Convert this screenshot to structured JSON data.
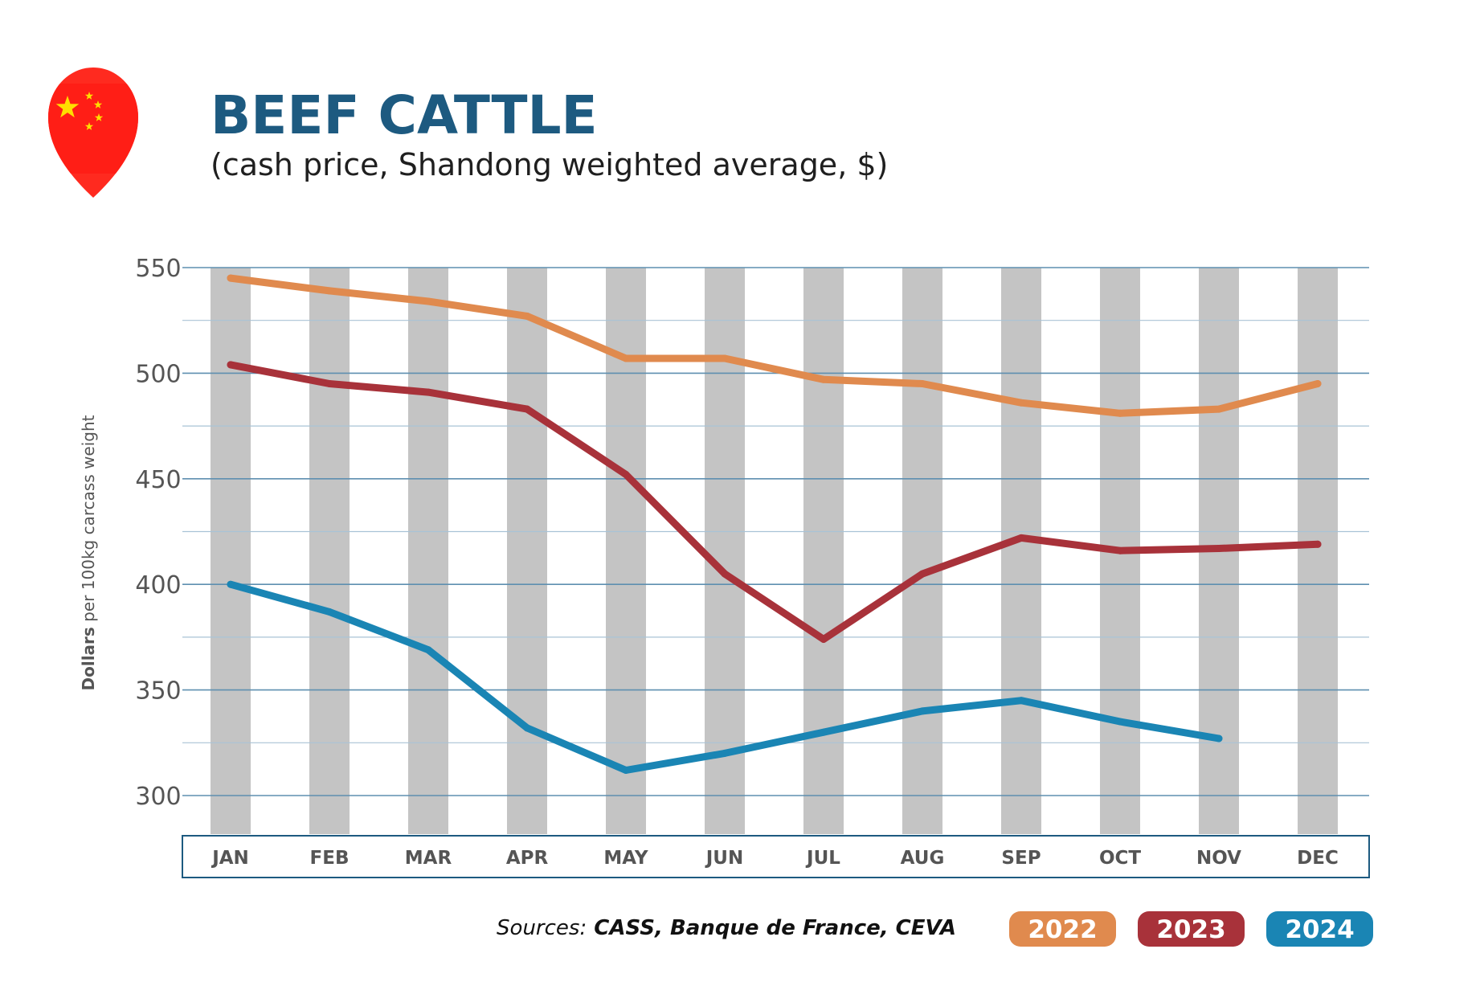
{
  "header": {
    "title": "BEEF CATTLE",
    "subtitle": "(cash price, Shandong weighted average, $)"
  },
  "badge": {
    "icon": "china-flag-map-pin-icon",
    "red": "#ff2a1f",
    "star": "#ffde00"
  },
  "chart_data": {
    "type": "line",
    "title": "BEEF CATTLE",
    "subtitle": "(cash price, Shandong weighted average, $)",
    "ylabel": {
      "bold": "Dollars",
      "rest": " per 100kg carcass weight"
    },
    "xlabel": "",
    "categories": [
      "JAN",
      "FEB",
      "MAR",
      "APR",
      "MAY",
      "JUN",
      "JUL",
      "AUG",
      "SEP",
      "OCT",
      "NOV",
      "DEC"
    ],
    "ylim": [
      280,
      550
    ],
    "yticks": [
      300,
      350,
      400,
      450,
      500,
      550
    ],
    "grid": true,
    "legend_position": "bottom-right",
    "series": [
      {
        "name": "2022",
        "color": "#e08a4e",
        "values": [
          545,
          539,
          534,
          527,
          507,
          507,
          497,
          495,
          486,
          481,
          483,
          495
        ]
      },
      {
        "name": "2023",
        "color": "#a8323a",
        "values": [
          504,
          495,
          491,
          483,
          452,
          405,
          374,
          405,
          422,
          416,
          417,
          419
        ]
      },
      {
        "name": "2024",
        "color": "#1a85b4",
        "values": [
          400,
          387,
          369,
          332,
          312,
          320,
          330,
          340,
          345,
          335,
          327,
          null
        ]
      }
    ]
  },
  "sources": {
    "label": "Sources:",
    "value": " CASS, Banque de France, CEVA"
  }
}
